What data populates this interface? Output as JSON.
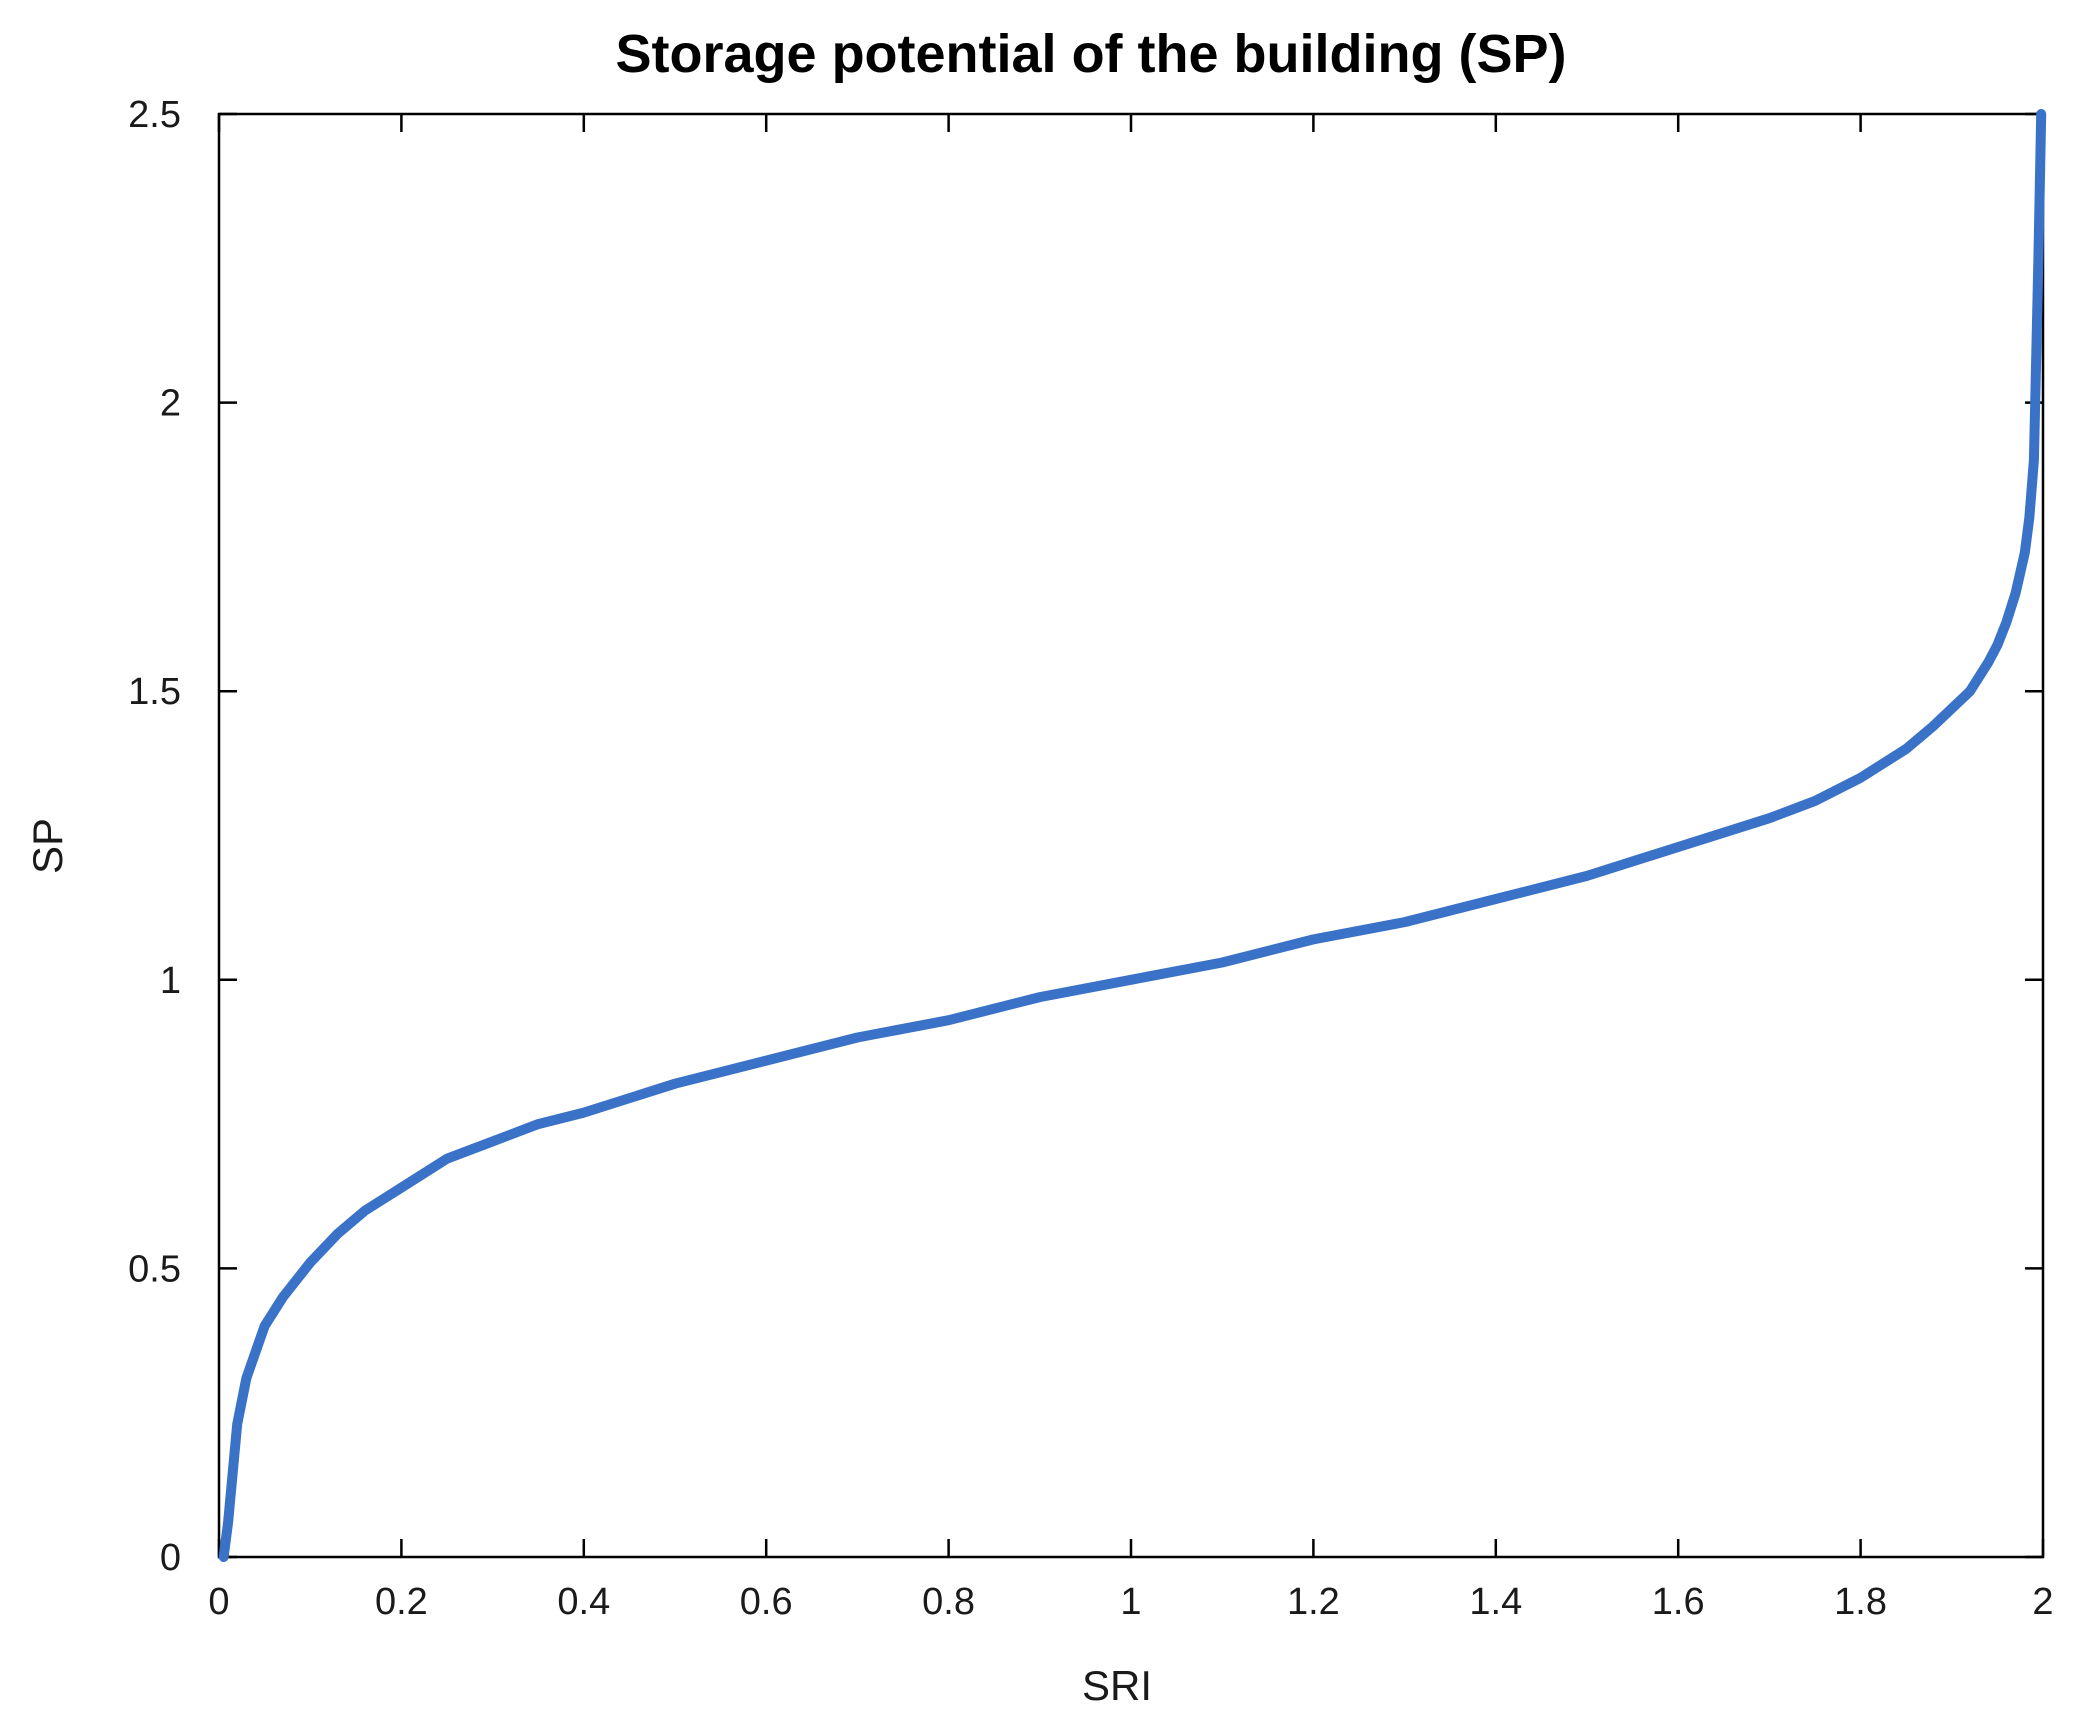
{
  "chart_data": {
    "type": "line",
    "title": "Storage potential of the building (SP)",
    "xlabel": "SRI",
    "ylabel": "SP",
    "xlim": [
      0,
      2
    ],
    "ylim": [
      0,
      2.5
    ],
    "xticks": [
      0,
      0.2,
      0.4,
      0.6,
      0.8,
      1,
      1.2,
      1.4,
      1.6,
      1.8,
      2
    ],
    "xtick_labels": [
      "0",
      "0.2",
      "0.4",
      "0.6",
      "0.8",
      "1",
      "1.2",
      "1.4",
      "1.6",
      "1.8",
      "2"
    ],
    "yticks": [
      0,
      0.5,
      1,
      1.5,
      2,
      2.5
    ],
    "ytick_labels": [
      "0",
      "0.5",
      "1",
      "1.5",
      "2",
      "2.5"
    ],
    "grid": false,
    "series": [
      {
        "color": "#3a72c8",
        "x": [
          0.005,
          0.01,
          0.02,
          0.03,
          0.05,
          0.07,
          0.1,
          0.13,
          0.16,
          0.2,
          0.25,
          0.3,
          0.35,
          0.4,
          0.5,
          0.6,
          0.7,
          0.8,
          0.9,
          1.0,
          1.1,
          1.2,
          1.3,
          1.4,
          1.5,
          1.6,
          1.7,
          1.75,
          1.8,
          1.85,
          1.88,
          1.9,
          1.92,
          1.94,
          1.95,
          1.96,
          1.97,
          1.98,
          1.985,
          1.99,
          1.995,
          1.998
        ],
        "y": [
          0.0,
          0.06,
          0.23,
          0.31,
          0.4,
          0.45,
          0.51,
          0.56,
          0.6,
          0.64,
          0.69,
          0.72,
          0.75,
          0.77,
          0.82,
          0.86,
          0.9,
          0.93,
          0.97,
          1.0,
          1.03,
          1.07,
          1.1,
          1.14,
          1.18,
          1.23,
          1.28,
          1.31,
          1.35,
          1.4,
          1.44,
          1.47,
          1.5,
          1.55,
          1.58,
          1.62,
          1.67,
          1.74,
          1.8,
          1.9,
          2.25,
          2.5
        ]
      }
    ]
  }
}
